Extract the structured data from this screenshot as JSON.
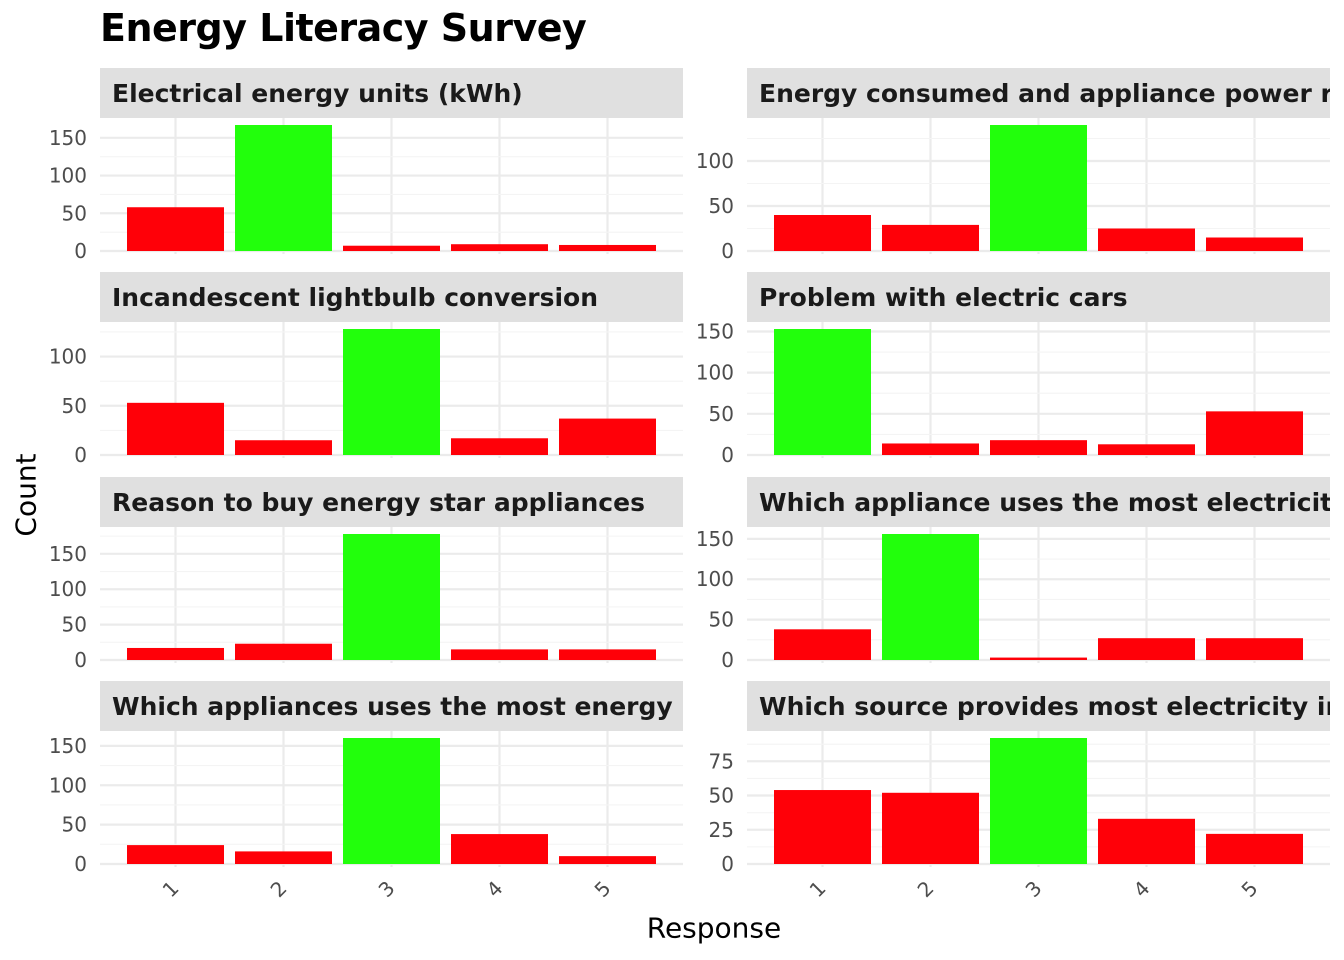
{
  "title": "Energy Literacy Survey",
  "xlabel": "Response",
  "ylabel": "Count",
  "colors": {
    "correct": "#22ff0c",
    "incorrect": "#ff0008",
    "strip": "#e0e0e0",
    "grid": "#ebebeb"
  },
  "chart_data": {
    "type": "bar",
    "title": "Energy Literacy Survey",
    "xlabel": "Response",
    "ylabel": "Count",
    "categories": [
      "1",
      "2",
      "3",
      "4",
      "5"
    ],
    "grid": true,
    "facets": [
      {
        "title": "Electrical energy units (kWh)",
        "values": [
          58,
          167,
          7,
          9,
          8
        ],
        "correct": 2,
        "yticks": [
          0,
          50,
          100,
          150
        ],
        "ylim": [
          0,
          167
        ]
      },
      {
        "title": "Energy consumed and appliance power rat",
        "values": [
          40,
          29,
          140,
          25,
          15
        ],
        "correct": 3,
        "yticks": [
          0,
          50,
          100
        ],
        "ylim": [
          0,
          140
        ]
      },
      {
        "title": "Incandescent lightbulb conversion",
        "values": [
          53,
          15,
          128,
          17,
          37
        ],
        "correct": 3,
        "yticks": [
          0,
          50,
          100
        ],
        "ylim": [
          0,
          128
        ]
      },
      {
        "title": "Problem with electric cars",
        "values": [
          153,
          14,
          18,
          13,
          53
        ],
        "correct": 1,
        "yticks": [
          0,
          50,
          100,
          150
        ],
        "ylim": [
          0,
          153
        ]
      },
      {
        "title": "Reason to buy energy star appliances",
        "values": [
          17,
          23,
          178,
          15,
          15
        ],
        "correct": 3,
        "yticks": [
          0,
          50,
          100,
          150
        ],
        "ylim": [
          0,
          178
        ]
      },
      {
        "title": "Which appliance uses the most electricity",
        "values": [
          38,
          156,
          3,
          27,
          27
        ],
        "correct": 2,
        "yticks": [
          0,
          50,
          100,
          150
        ],
        "ylim": [
          0,
          156
        ]
      },
      {
        "title": "Which appliances uses the most energy",
        "values": [
          24,
          16,
          160,
          38,
          10
        ],
        "correct": 3,
        "yticks": [
          0,
          50,
          100,
          150
        ],
        "ylim": [
          0,
          160
        ]
      },
      {
        "title": "Which source provides most electricity in t",
        "values": [
          54,
          52,
          92,
          33,
          22
        ],
        "correct": 3,
        "yticks": [
          0,
          25,
          50,
          75
        ],
        "ylim": [
          0,
          92
        ]
      }
    ]
  }
}
